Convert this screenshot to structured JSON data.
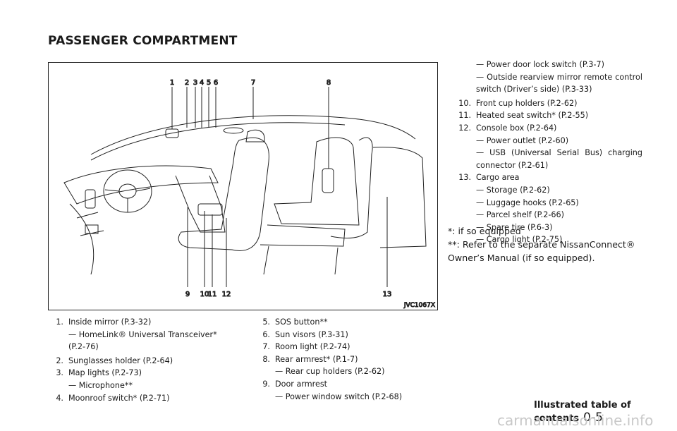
{
  "header": {
    "title": "PASSENGER COMPARTMENT"
  },
  "figure": {
    "top_labels": [
      "1",
      "2",
      "3",
      "4",
      "5",
      "6",
      "7",
      "8"
    ],
    "bottom_labels": [
      "9",
      "10",
      "11",
      "12",
      "13"
    ],
    "code": "JVC1067X"
  },
  "items": [
    {
      "number": "1.",
      "text": "Inside mirror (P.3-32)",
      "subs": [
        "— HomeLink® Universal Transceiver* (P.2-76)"
      ]
    },
    {
      "number": "2.",
      "text": "Sunglasses holder (P.2-64)"
    },
    {
      "number": "3.",
      "text": "Map lights (P.2-73)",
      "subs": [
        "— Microphone**"
      ]
    },
    {
      "number": "4.",
      "text": "Moonroof switch* (P.2-71)"
    },
    {
      "number": "5.",
      "text": "SOS button**"
    },
    {
      "number": "6.",
      "text": "Sun visors (P.3-31)"
    },
    {
      "number": "7.",
      "text": "Room light (P.2-74)"
    },
    {
      "number": "8.",
      "text": "Rear armrest* (P.1-7)",
      "subs": [
        "— Rear cup holders (P.2-62)"
      ]
    },
    {
      "number": "9.",
      "text": "Door armrest",
      "subs": [
        "— Power window switch (P.2-68)",
        "— Power door lock switch (P.3-7)",
        "— Outside rearview mirror remote control switch (Driver’s side) (P.3-33)"
      ]
    },
    {
      "number": "10.",
      "text": "Front cup holders (P.2-62)"
    },
    {
      "number": "11.",
      "text": "Heated seat switch* (P.2-55)"
    },
    {
      "number": "12.",
      "text": "Console box (P.2-64)",
      "subs": [
        "— Power outlet (P.2-60)",
        "— USB (Universal Serial Bus) charging connector (P.2-61)"
      ]
    },
    {
      "number": "13.",
      "text": "Cargo area",
      "subs": [
        "— Storage (P.2-62)",
        "— Luggage hooks (P.2-65)",
        "— Parcel shelf (P.2-66)",
        "— Spare tire (P.6-3)",
        "— Cargo light (P.2-75)"
      ]
    }
  ],
  "footnotes": [
    "*: if so equipped",
    "**: Refer to the separate NissanConnect® Owner’s Manual (if so equipped)."
  ],
  "footer": {
    "section": "Illustrated table of contents",
    "page": "0-5"
  },
  "watermark": "carmanualsonline.info"
}
